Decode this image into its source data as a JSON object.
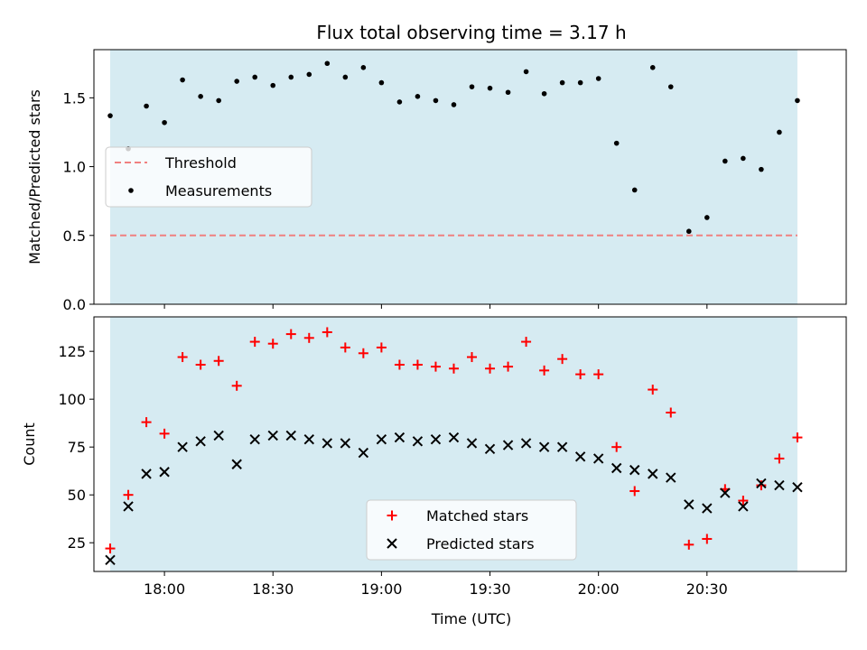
{
  "chart_data": {
    "title": "Flux total observing time = 3.17 h",
    "xlabel": "Time (UTC)",
    "x_ticks": [
      "18:00",
      "18:30",
      "19:00",
      "19:30",
      "20:00",
      "20:30"
    ],
    "x_tick_minutes": [
      1080,
      1110,
      1140,
      1170,
      1200,
      1230
    ],
    "xlim_minutes": [
      1060.5,
      1268.5
    ],
    "observing_window_minutes": [
      1065,
      1255
    ],
    "observing_window_color": "#add8e6",
    "x_minutes": [
      1065,
      1070,
      1075,
      1080,
      1085,
      1090,
      1095,
      1100,
      1105,
      1110,
      1115,
      1120,
      1125,
      1130,
      1135,
      1140,
      1145,
      1150,
      1155,
      1160,
      1165,
      1170,
      1175,
      1180,
      1185,
      1190,
      1195,
      1200,
      1205,
      1210,
      1215,
      1220,
      1225,
      1230,
      1235,
      1240,
      1245,
      1250,
      1255
    ],
    "subplots": [
      {
        "type": "scatter",
        "ylabel": "Matched/Predicted stars",
        "ylim": [
          0,
          1.85
        ],
        "y_ticks": [
          "0.0",
          "0.5",
          "1.0",
          "1.5"
        ],
        "y_tick_values": [
          0,
          0.5,
          1.0,
          1.5
        ],
        "threshold": {
          "name": "Threshold",
          "value": 0.5,
          "color": "#f08080"
        },
        "series": [
          {
            "name": "Measurements",
            "marker": "dot",
            "color": "#000000",
            "x_minutes": [
              1065,
              1070,
              1075,
              1080,
              1085,
              1090,
              1095,
              1100,
              1105,
              1110,
              1115,
              1120,
              1125,
              1130,
              1135,
              1140,
              1145,
              1150,
              1155,
              1160,
              1165,
              1170,
              1175,
              1180,
              1185,
              1190,
              1195,
              1200,
              1205,
              1210,
              1215,
              1220,
              1225,
              1230,
              1235,
              1240,
              1245,
              1250,
              1255
            ],
            "values": [
              1.37,
              1.13,
              1.44,
              1.32,
              1.63,
              1.51,
              1.48,
              1.62,
              1.65,
              1.59,
              1.65,
              1.67,
              1.75,
              1.65,
              1.72,
              1.61,
              1.47,
              1.51,
              1.48,
              1.45,
              1.58,
              1.57,
              1.54,
              1.69,
              1.53,
              1.61,
              1.61,
              1.64,
              1.17,
              0.83,
              1.72,
              1.58,
              0.53,
              0.63,
              1.04,
              1.06,
              0.98,
              1.25,
              1.48
            ]
          }
        ],
        "legend_position": "center-left"
      },
      {
        "type": "scatter",
        "ylabel": "Count",
        "ylim": [
          10,
          143
        ],
        "y_ticks": [
          "25",
          "50",
          "75",
          "100",
          "125"
        ],
        "y_tick_values": [
          25,
          50,
          75,
          100,
          125
        ],
        "series": [
          {
            "name": "Matched stars",
            "marker": "plus",
            "color": "#ff0000",
            "values": [
              22,
              50,
              88,
              82,
              122,
              118,
              120,
              107,
              130,
              129,
              134,
              132,
              135,
              127,
              124,
              127,
              118,
              118,
              117,
              116,
              122,
              116,
              117,
              130,
              115,
              121,
              113,
              113,
              75,
              52,
              105,
              93,
              24,
              27,
              53,
              47,
              55,
              69,
              80
            ]
          },
          {
            "name": "Predicted stars",
            "marker": "x",
            "color": "#000000",
            "values": [
              16,
              44,
              61,
              62,
              75,
              78,
              81,
              66,
              79,
              81,
              81,
              79,
              77,
              77,
              72,
              79,
              80,
              78,
              79,
              80,
              77,
              74,
              76,
              77,
              75,
              75,
              70,
              69,
              64,
              63,
              61,
              59,
              45,
              43,
              51,
              44,
              56,
              55,
              54
            ]
          }
        ],
        "legend_position": "lower-center"
      }
    ]
  }
}
